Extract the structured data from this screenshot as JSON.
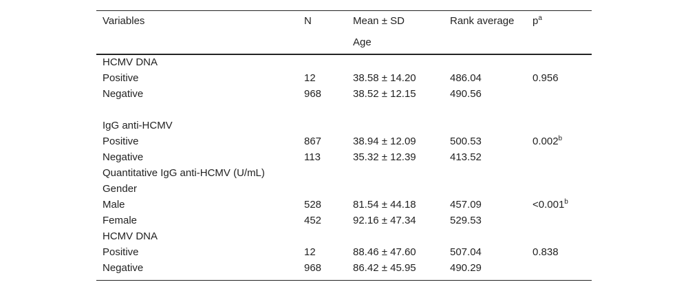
{
  "table": {
    "header": [
      "Variables",
      "N",
      "Mean ± SD",
      "Rank average",
      {
        "text": "p",
        "sup": "a"
      }
    ],
    "subheader": [
      null,
      null,
      "Age",
      null,
      null
    ],
    "rows": [
      [
        "HCMV DNA",
        null,
        null,
        null,
        null
      ],
      [
        "Positive",
        "12",
        "38.58 ± 14.20",
        "486.04",
        "0.956"
      ],
      [
        "Negative",
        "968",
        "38.52 ± 12.15",
        "490.56",
        null
      ],
      [
        null,
        null,
        null,
        null,
        null
      ],
      [
        "IgG anti-HCMV",
        null,
        null,
        null,
        null
      ],
      [
        "Positive",
        "867",
        "38.94 ± 12.09",
        "500.53",
        {
          "text": "0.002",
          "sup": "b"
        }
      ],
      [
        "Negative",
        "113",
        "35.32 ± 12.39",
        "413.52",
        null
      ],
      [
        "Quantitative IgG anti-HCMV (U/mL)",
        null,
        null,
        null,
        null
      ],
      [
        "Gender",
        null,
        null,
        null,
        null
      ],
      [
        "Male",
        "528",
        "81.54 ± 44.18",
        "457.09",
        {
          "text": "<0.001",
          "sup": "b"
        }
      ],
      [
        "Female",
        "452",
        "92.16 ± 47.34",
        "529.53",
        null
      ],
      [
        "HCMV DNA",
        null,
        null,
        null,
        null
      ],
      [
        "Positive",
        "12",
        "88.46 ± 47.60",
        "507.04",
        "0.838"
      ],
      [
        "Negative",
        "968",
        "86.42 ± 45.95",
        "490.29",
        null
      ]
    ]
  }
}
